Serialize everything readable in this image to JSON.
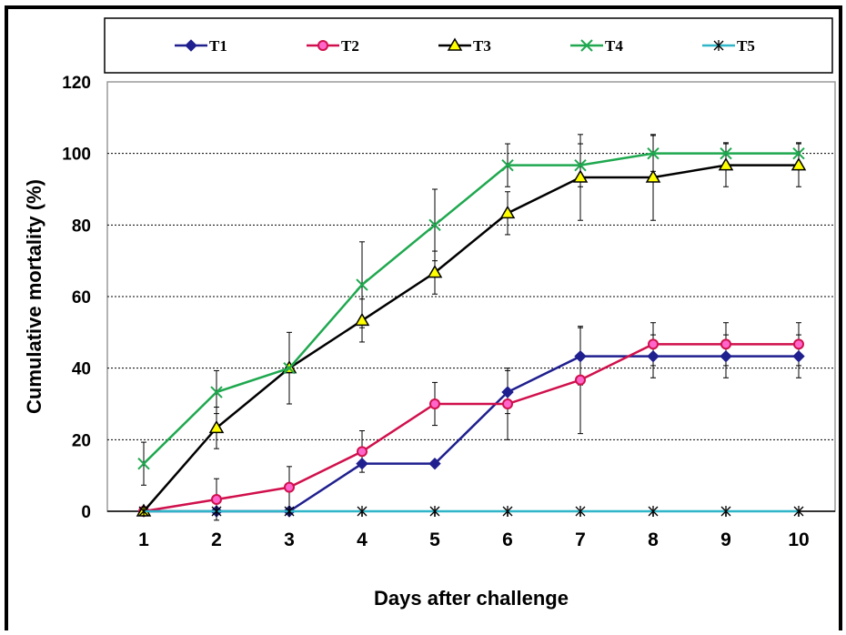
{
  "chart_data": {
    "type": "line",
    "title": "",
    "xlabel": "Days after challenge",
    "ylabel": "Cumulative mortality (%)",
    "categories": [
      "1",
      "2",
      "3",
      "4",
      "5",
      "6",
      "7",
      "8",
      "9",
      "10"
    ],
    "ylim": [
      0,
      120
    ],
    "yticks": [
      "0",
      "20",
      "40",
      "60",
      "80",
      "100",
      "120"
    ],
    "grid": "horizontal dotted",
    "legend_position": "top",
    "series": [
      {
        "name": "T1",
        "color": "#1f1f8f",
        "marker": "diamond",
        "values": [
          0,
          0,
          0,
          13.3,
          13.3,
          33.3,
          43.3,
          43.3,
          43.3,
          43.3
        ],
        "error": [
          0,
          0,
          0,
          0,
          0,
          6,
          8,
          6,
          6,
          6
        ]
      },
      {
        "name": "T2",
        "color": "#d0104c",
        "marker": "circle",
        "values": [
          0,
          3.3,
          6.7,
          16.7,
          30,
          30,
          36.7,
          46.7,
          46.7,
          46.7
        ],
        "error": [
          0,
          5.8,
          5.8,
          5.8,
          6,
          10,
          15,
          6,
          6,
          6
        ]
      },
      {
        "name": "T3",
        "color": "#000000",
        "marker": "triangle",
        "values": [
          0,
          23.3,
          40,
          53.3,
          66.7,
          83.3,
          93.3,
          93.3,
          96.7,
          96.7
        ],
        "error": [
          0,
          5.8,
          10,
          6,
          6,
          6,
          12,
          12,
          6,
          6
        ]
      },
      {
        "name": "T4",
        "color": "#1fa84f",
        "marker": "x",
        "values": [
          13.3,
          33.3,
          40,
          63.3,
          80,
          96.7,
          96.7,
          100,
          100,
          100
        ],
        "error": [
          6,
          6,
          0,
          12,
          10,
          6,
          6,
          5,
          3,
          3
        ]
      },
      {
        "name": "T5",
        "color": "#2fb5c8",
        "marker": "star",
        "values": [
          0,
          0,
          0,
          0,
          0,
          0,
          0,
          0,
          0,
          0
        ],
        "error": [
          0,
          0,
          0,
          0,
          0,
          0,
          0,
          0,
          0,
          0
        ]
      }
    ]
  }
}
